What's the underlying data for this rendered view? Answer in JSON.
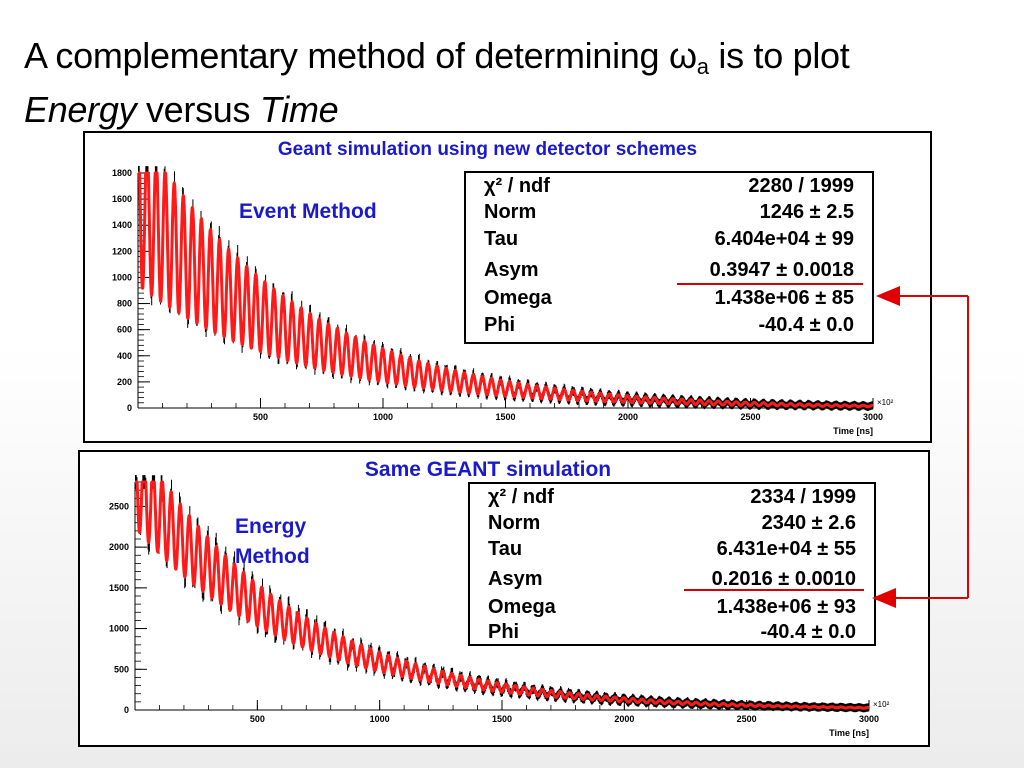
{
  "slide": {
    "title_part1": "A complementary method of determining ",
    "omega_symbol": "ω",
    "omega_sub": "a",
    "title_part2": " is to plot",
    "title_line2_a": "Energy",
    "title_line2_b": " versus ",
    "title_line2_c": "Time"
  },
  "panels": [
    {
      "title": "Geant simulation using new detector schemes",
      "method_label": [
        "Event Method"
      ],
      "stats": [
        {
          "key": "χ² / ndf",
          "value": "2280 / 1999"
        },
        {
          "key": "Norm",
          "value": "1246 ± 2.5"
        },
        {
          "key": "Tau",
          "value": "6.404e+04 ± 99"
        },
        {
          "key": "Asym",
          "value": "0.3947 ± 0.0018"
        },
        {
          "key": "Omega",
          "value": "1.438e+06 ± 85"
        },
        {
          "key": "Phi",
          "value": "-40.4 ± 0.0"
        }
      ]
    },
    {
      "title": "Same GEANT simulation",
      "method_label": [
        "Energy",
        "Method"
      ],
      "stats": [
        {
          "key": "χ² / ndf",
          "value": "2334 / 1999"
        },
        {
          "key": "Norm",
          "value": "2340 ± 2.6"
        },
        {
          "key": "Tau",
          "value": "6.431e+04 ± 55"
        },
        {
          "key": "Asym",
          "value": "0.2016 ± 0.0010"
        },
        {
          "key": "Omega",
          "value": "1.438e+06 ± 93"
        },
        {
          "key": "Phi",
          "value": "-40.4 ± 0.0"
        }
      ]
    }
  ],
  "chart_data": [
    {
      "type": "line",
      "title": "Geant simulation using new detector schemes",
      "xlabel": "Time [ns]",
      "x_multiplier": "×10²",
      "ylabel": "",
      "xlim": [
        0,
        3000
      ],
      "ylim": [
        0,
        1800
      ],
      "x_ticks": [
        500,
        1000,
        1500,
        2000,
        2500,
        3000
      ],
      "y_ticks": [
        0,
        200,
        400,
        600,
        800,
        1000,
        1200,
        1400,
        1600,
        1800
      ],
      "series_color": "#ff1a1a",
      "fit_function": {
        "norm": 1246,
        "tau_ns_scaled": 640.4,
        "asym": 0.3947,
        "period": 37,
        "amplitude_scale": 1.25
      }
    },
    {
      "type": "line",
      "title": "Same GEANT simulation",
      "xlabel": "Time [ns]",
      "x_multiplier": "×10²",
      "ylabel": "",
      "xlim": [
        0,
        3000
      ],
      "ylim": [
        0,
        2800
      ],
      "x_ticks": [
        500,
        1000,
        1500,
        2000,
        2500,
        3000
      ],
      "y_ticks": [
        0,
        500,
        1000,
        1500,
        2000,
        2500
      ],
      "series_color": "#ff1a1a",
      "fit_function": {
        "norm": 2340,
        "tau_ns_scaled": 643.1,
        "asym": 0.2016,
        "period": 37,
        "amplitude_scale": 1.2
      }
    }
  ]
}
